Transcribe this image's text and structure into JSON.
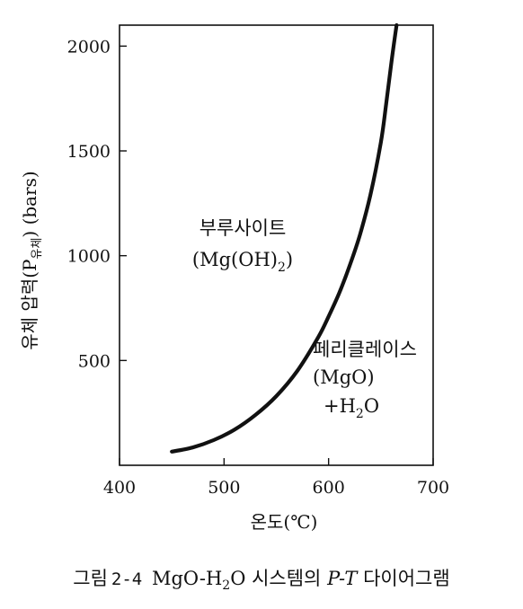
{
  "chart_data": {
    "type": "line",
    "xlabel": "온도(℃)",
    "ylabel": "유체 압력(P",
    "ylabel_sub": "유체",
    "ylabel_tail": ") (bars)",
    "xlim": [
      400,
      700
    ],
    "ylim": [
      0,
      2100
    ],
    "x_ticks": [
      400,
      500,
      600,
      700
    ],
    "y_ticks": [
      500,
      1000,
      1500,
      2000
    ],
    "grid": false,
    "series": [
      {
        "color": "#111111",
        "x": [
          450,
          470,
          490,
          510,
          530,
          550,
          570,
          590,
          600,
          610,
          620,
          630,
          640,
          650,
          655,
          660,
          665
        ],
        "y": [
          65,
          85,
          120,
          170,
          240,
          330,
          450,
          610,
          710,
          820,
          950,
          1100,
          1290,
          1540,
          1720,
          1920,
          2100
        ]
      }
    ],
    "annotations": [
      {
        "key": "brucite",
        "line1": "부루사이트",
        "line2": "(Mg(OH)",
        "line2_sub": "2",
        "line2_tail": ")"
      },
      {
        "key": "periclase",
        "line1": "페리클레이스",
        "line2": "(MgO)",
        "line3": "+H",
        "line3_sub": "2",
        "line3_tail": "O"
      }
    ]
  },
  "caption": {
    "prefix": "그림",
    "number": "2-4",
    "text_main": "MgO-H",
    "text_sub": "2",
    "text_tail": "O 시스템의",
    "italic": "P-T",
    "suffix": "다이어그램"
  }
}
